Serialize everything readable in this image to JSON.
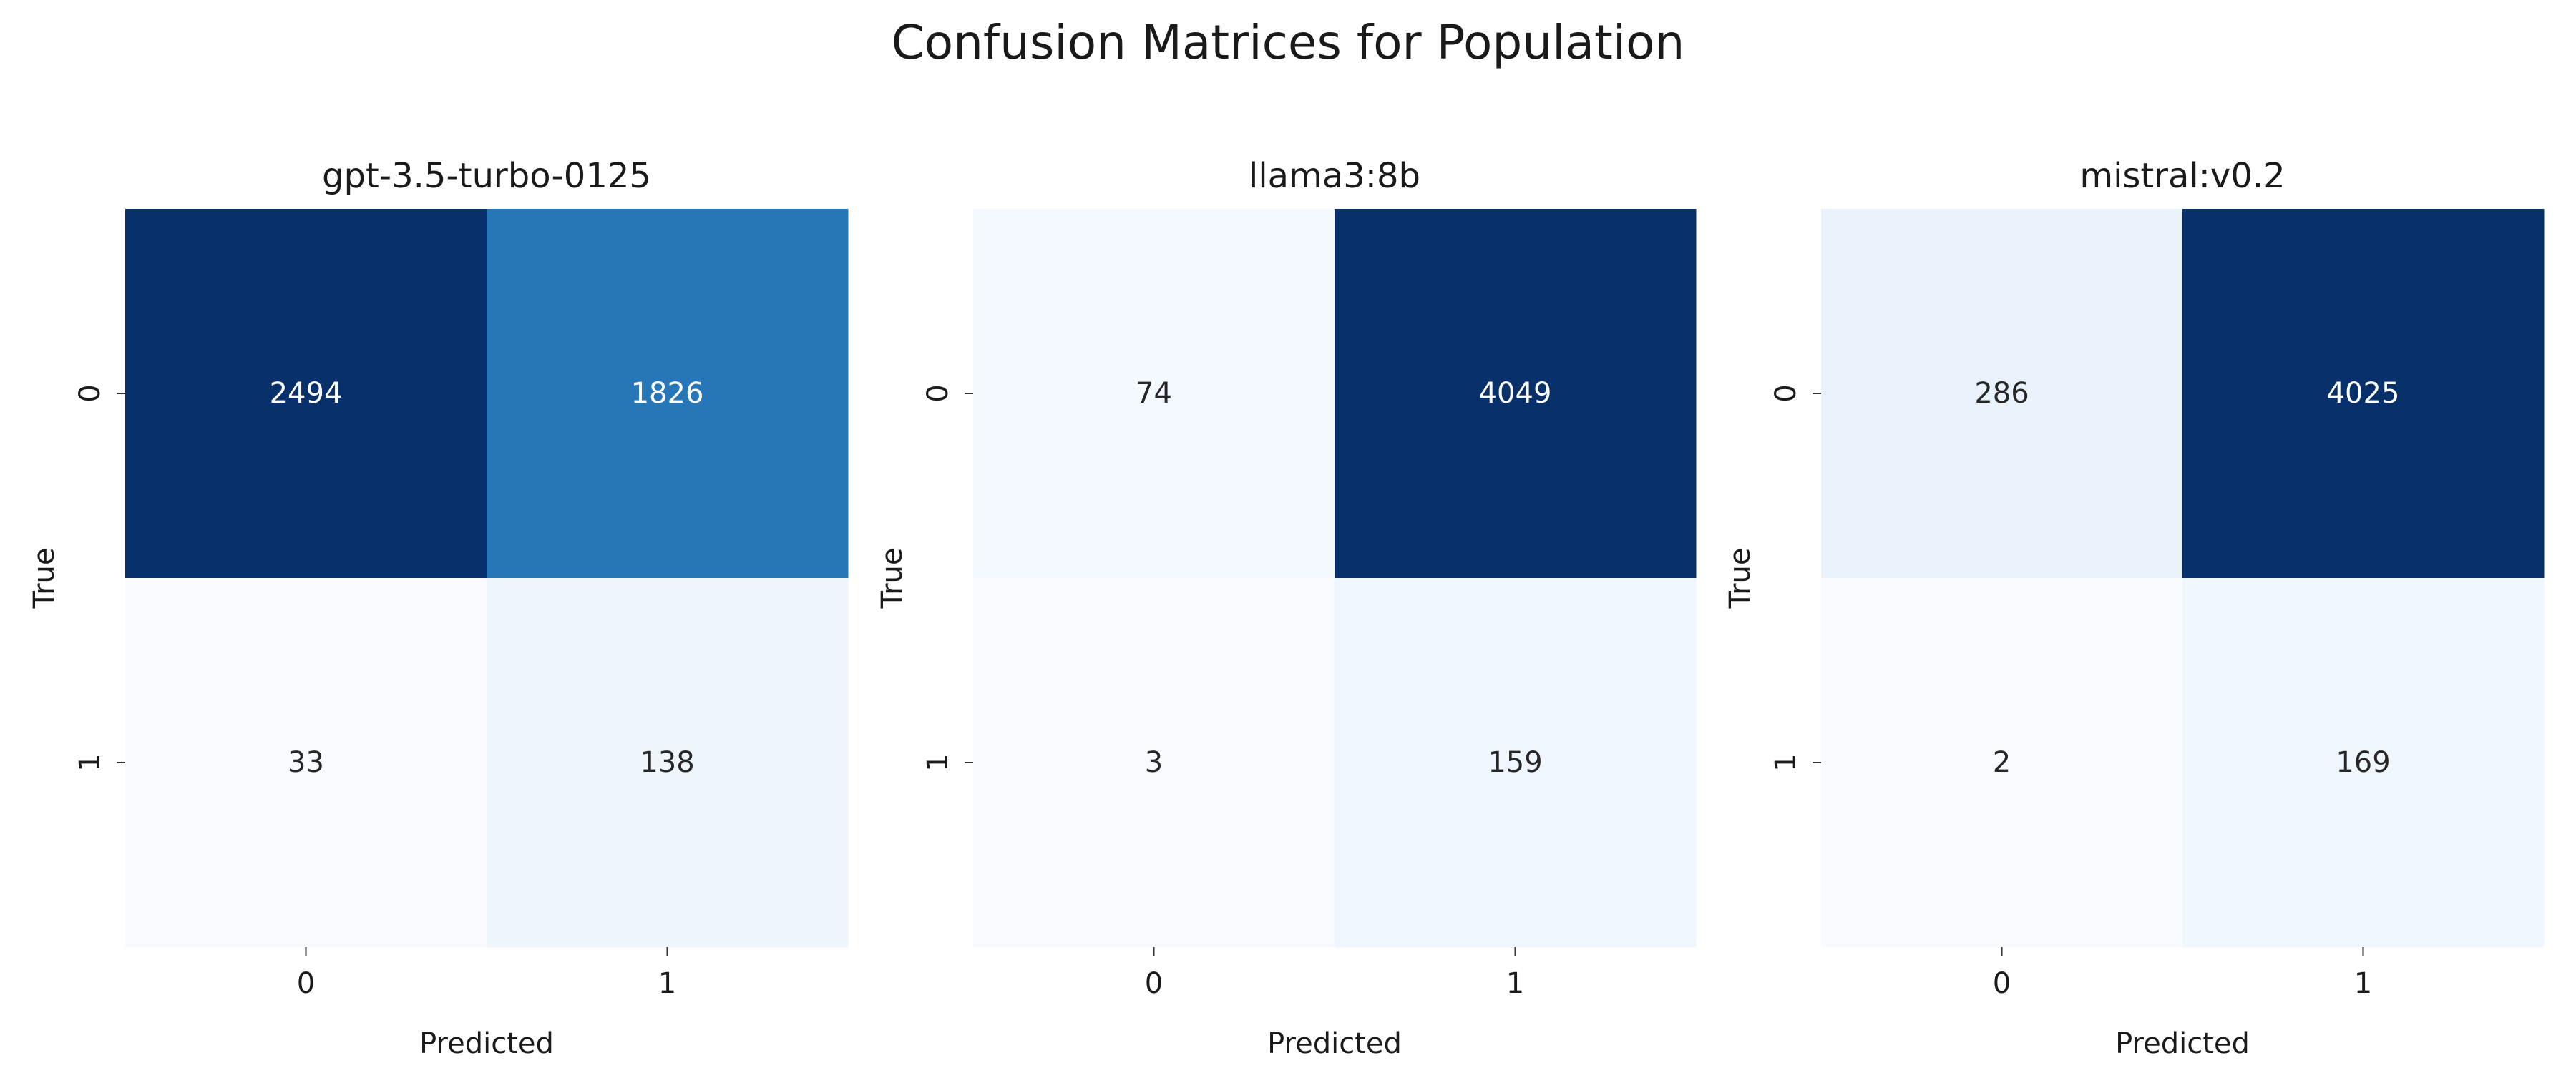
{
  "suptitle": "Confusion Matrices for Population",
  "chart_data": [
    {
      "type": "heatmap",
      "title": "gpt-3.5-turbo-0125",
      "xlabel": "Predicted",
      "ylabel": "True",
      "x_categories": [
        "0",
        "1"
      ],
      "y_categories": [
        "0",
        "1"
      ],
      "values": [
        [
          2494,
          1826
        ],
        [
          33,
          138
        ]
      ],
      "colormap": "Blues",
      "colorbar": false
    },
    {
      "type": "heatmap",
      "title": "llama3:8b",
      "xlabel": "Predicted",
      "ylabel": "True",
      "x_categories": [
        "0",
        "1"
      ],
      "y_categories": [
        "0",
        "1"
      ],
      "values": [
        [
          74,
          4049
        ],
        [
          3,
          159
        ]
      ],
      "colormap": "Blues",
      "colorbar": false
    },
    {
      "type": "heatmap",
      "title": "mistral:v0.2",
      "xlabel": "Predicted",
      "ylabel": "True",
      "x_categories": [
        "0",
        "1"
      ],
      "y_categories": [
        "0",
        "1"
      ],
      "values": [
        [
          286,
          4025
        ],
        [
          2,
          169
        ]
      ],
      "colormap": "Blues",
      "colorbar": false
    }
  ]
}
